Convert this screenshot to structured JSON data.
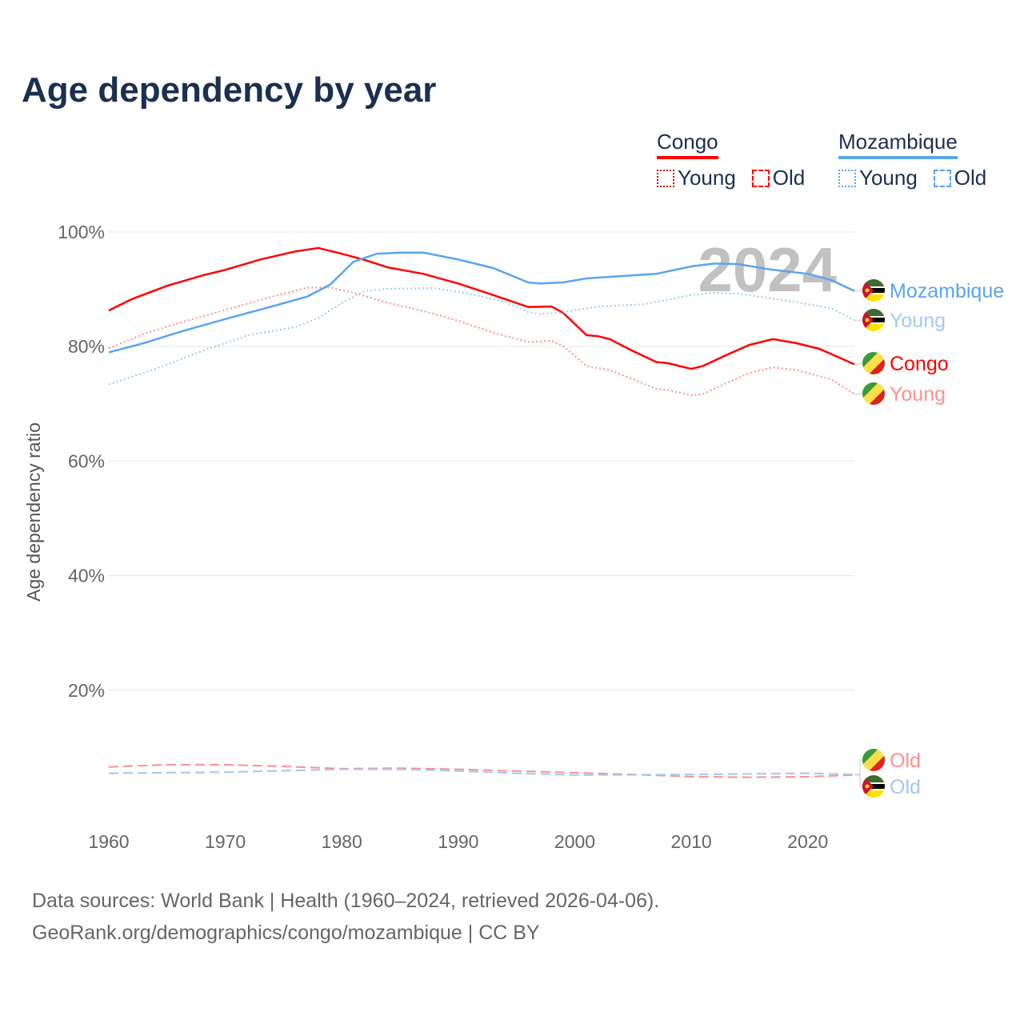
{
  "title": "Age dependency by year",
  "legend": {
    "groups": [
      {
        "country": "Congo",
        "color": "#ff0000",
        "young": "Young",
        "old": "Old"
      },
      {
        "country": "Mozambique",
        "color": "#5aa5ee",
        "young": "Young",
        "old": "Old"
      }
    ]
  },
  "footer": {
    "line1": "Data sources: World Bank | Health (1960–2024, retrieved 2026-04-06).",
    "line2": "GeoRank.org/demographics/congo/mozambique | CC BY"
  },
  "chart_data": {
    "type": "line",
    "title": "Age dependency by year",
    "ylabel": "Age dependency ratio",
    "xlabel": "",
    "xlim": [
      1960,
      2024
    ],
    "ylim": [
      0,
      100
    ],
    "xticks": [
      "1960",
      "1970",
      "1980",
      "1990",
      "2000",
      "2010",
      "2020"
    ],
    "yticks": [
      "20%",
      "40%",
      "60%",
      "80%",
      "100%"
    ],
    "year_watermark": "2024",
    "grid": true,
    "series": [
      {
        "name": "Congo",
        "label": "Congo",
        "color": "#ff0000",
        "style": "solid",
        "flag": "congo",
        "x": [
          1960,
          1962,
          1965,
          1968,
          1970,
          1973,
          1976,
          1978,
          1980,
          1982,
          1984,
          1987,
          1990,
          1993,
          1996,
          1998,
          1999,
          2001,
          2002,
          2003,
          2005,
          2007,
          2008,
          2010,
          2011,
          2013,
          2015,
          2017,
          2019,
          2021,
          2022,
          2024
        ],
        "y": [
          86.3,
          88.3,
          90.6,
          92.4,
          93.4,
          95.2,
          96.6,
          97.2,
          96.2,
          95.1,
          93.8,
          92.7,
          91.0,
          89.0,
          86.9,
          87.0,
          85.9,
          82.0,
          81.8,
          81.3,
          79.2,
          77.3,
          77.1,
          76.1,
          76.6,
          78.5,
          80.3,
          81.3,
          80.6,
          79.6,
          78.7,
          76.9
        ]
      },
      {
        "name": "Congo Young",
        "label": "Young",
        "color": "#ff9090",
        "style": "dotted",
        "flag": "congo",
        "x": [
          1960,
          1963,
          1966,
          1970,
          1974,
          1977,
          1979,
          1981,
          1984,
          1987,
          1990,
          1993,
          1996,
          1998,
          1999,
          2001,
          2003,
          2005,
          2007,
          2008,
          2010,
          2011,
          2013,
          2015,
          2017,
          2019,
          2022,
          2024
        ],
        "y": [
          79.7,
          82.2,
          84.1,
          86.4,
          88.7,
          90.3,
          90.3,
          89.4,
          87.6,
          86.2,
          84.5,
          82.4,
          80.8,
          81.0,
          80.1,
          76.6,
          75.9,
          74.3,
          72.6,
          72.4,
          71.5,
          71.7,
          73.6,
          75.4,
          76.4,
          75.9,
          74.3,
          71.7
        ]
      },
      {
        "name": "Congo Old",
        "label": "Old",
        "color": "#ff9090",
        "style": "dashed",
        "flag": "congo",
        "x": [
          1960,
          1965,
          1970,
          1975,
          1980,
          1985,
          1990,
          1995,
          2000,
          2005,
          2010,
          2015,
          2020,
          2024
        ],
        "y": [
          6.6,
          7.0,
          7.0,
          6.7,
          6.3,
          6.4,
          6.2,
          5.9,
          5.6,
          5.3,
          4.9,
          4.8,
          4.9,
          5.2
        ]
      },
      {
        "name": "Mozambique",
        "label": "Mozambique",
        "color": "#5aa5ee",
        "style": "solid",
        "flag": "mozambique",
        "x": [
          1960,
          1963,
          1966,
          1970,
          1974,
          1977,
          1979,
          1981,
          1983,
          1985,
          1987,
          1990,
          1993,
          1996,
          1997,
          1999,
          2001,
          2004,
          2007,
          2010,
          2012,
          2014,
          2017,
          2020,
          2022,
          2024
        ],
        "y": [
          79.0,
          80.6,
          82.5,
          84.8,
          87.0,
          88.7,
          90.8,
          94.8,
          96.2,
          96.4,
          96.4,
          95.2,
          93.7,
          91.2,
          91.0,
          91.2,
          91.9,
          92.3,
          92.7,
          94.0,
          94.5,
          94.4,
          93.4,
          92.7,
          91.6,
          89.7
        ]
      },
      {
        "name": "Mozambique Young",
        "label": "Young",
        "color": "#a3c9f3",
        "style": "dotted",
        "flag": "mozambique",
        "x": [
          1960,
          1964,
          1968,
          1972,
          1976,
          1978,
          1980,
          1982,
          1984,
          1988,
          1991,
          1994,
          1996,
          1997,
          1999,
          2002,
          2006,
          2010,
          2012,
          2014,
          2018,
          2022,
          2024
        ],
        "y": [
          73.4,
          76.1,
          79.2,
          82.0,
          83.4,
          85.0,
          87.6,
          89.7,
          90.1,
          90.2,
          89.2,
          87.8,
          86.0,
          85.7,
          86.0,
          87.0,
          87.4,
          89.0,
          89.4,
          89.2,
          88.1,
          86.7,
          84.6
        ]
      },
      {
        "name": "Mozambique Old",
        "label": "Old",
        "color": "#a3c9f3",
        "style": "dashed",
        "flag": "mozambique",
        "x": [
          1960,
          1970,
          1980,
          1985,
          1990,
          1995,
          2000,
          2010,
          2020,
          2024
        ],
        "y": [
          5.5,
          5.7,
          6.2,
          6.2,
          5.9,
          5.5,
          5.2,
          5.3,
          5.5,
          5.3
        ]
      }
    ]
  }
}
